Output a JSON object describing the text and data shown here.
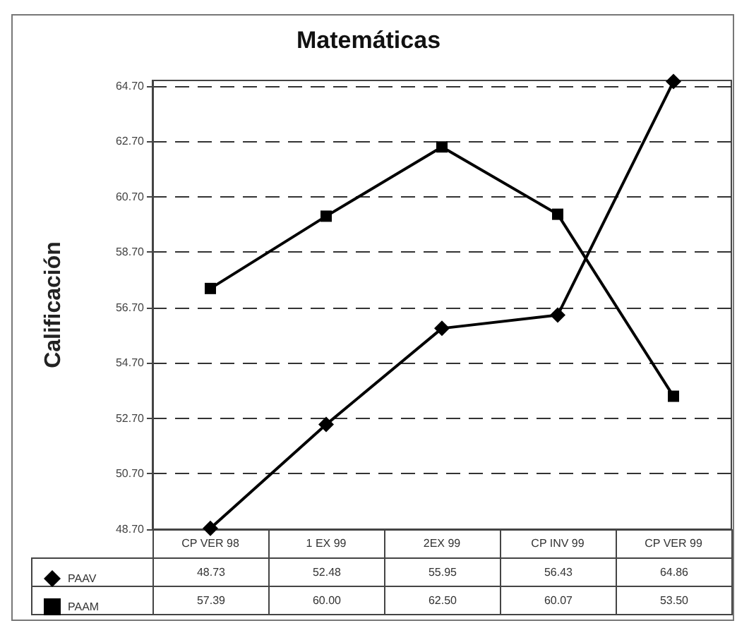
{
  "chart_data": {
    "type": "line",
    "title": "Matemáticas",
    "ylabel": "Calificación",
    "categories": [
      "CP VER 98",
      "1 EX 99",
      "2EX 99",
      "CP INV 99",
      "CP VER 99"
    ],
    "series": [
      {
        "name": "PAAV",
        "color": "#000000",
        "marker": "diamond",
        "values": [
          48.73,
          52.48,
          55.95,
          56.43,
          64.86
        ],
        "value_labels": [
          "48.73",
          "52.48",
          "55.95",
          "56.43",
          "64.86"
        ]
      },
      {
        "name": "PAAM",
        "color": "#000000",
        "marker": "square",
        "values": [
          57.39,
          60.0,
          62.5,
          60.07,
          53.5
        ],
        "value_labels": [
          "57.39",
          "60.00",
          "62.50",
          "60.07",
          "53.50"
        ]
      }
    ],
    "ylim": [
      48.7,
      64.9
    ],
    "yticks": [
      {
        "value": 48.7,
        "label": "48.70"
      },
      {
        "value": 50.7,
        "label": "50.70"
      },
      {
        "value": 52.7,
        "label": "52.70"
      },
      {
        "value": 54.7,
        "label": "54.70"
      },
      {
        "value": 56.7,
        "label": "56.70"
      },
      {
        "value": 58.7,
        "label": "58.70"
      },
      {
        "value": 60.7,
        "label": "60.70"
      },
      {
        "value": 62.7,
        "label": "62.70"
      },
      {
        "value": 64.7,
        "label": "64.70"
      }
    ],
    "grid": "y",
    "legend": "bottom left",
    "line_style": "solid"
  }
}
